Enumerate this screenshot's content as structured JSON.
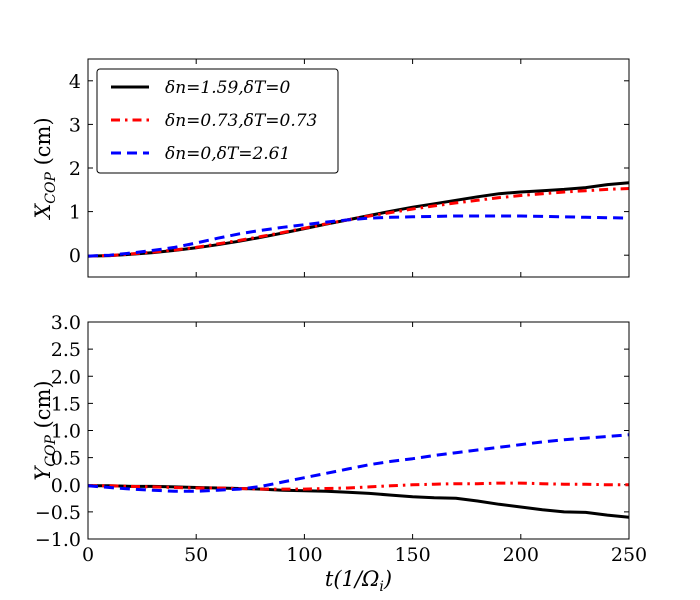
{
  "chart_data": [
    {
      "type": "line",
      "xlabel": "",
      "ylabel": "X_COP (cm)",
      "ylabel_main": "X",
      "ylabel_sub": "COP",
      "ylabel_unit": " (cm)",
      "xlim": [
        0,
        250
      ],
      "ylim": [
        -0.5,
        4.5
      ],
      "yticks": [
        0,
        1,
        2,
        3,
        4
      ],
      "xticks": [
        0,
        50,
        100,
        150,
        200,
        250
      ],
      "show_x_tick_labels": false,
      "legend_position": "top-left",
      "series": [
        {
          "name": "δn=1.59,δT=0",
          "color": "#000000",
          "style": "solid",
          "x": [
            0,
            10,
            20,
            30,
            40,
            50,
            60,
            70,
            80,
            90,
            100,
            110,
            120,
            130,
            140,
            150,
            160,
            170,
            180,
            190,
            200,
            210,
            220,
            230,
            240,
            250
          ],
          "y": [
            -0.02,
            -0.01,
            0.02,
            0.06,
            0.11,
            0.17,
            0.24,
            0.32,
            0.41,
            0.51,
            0.61,
            0.71,
            0.81,
            0.91,
            1.01,
            1.1,
            1.18,
            1.26,
            1.34,
            1.41,
            1.45,
            1.48,
            1.51,
            1.55,
            1.62,
            1.66
          ]
        },
        {
          "name": "δn=0.73,δT=0.73",
          "color": "#ff0000",
          "style": "dashdot",
          "x": [
            0,
            10,
            20,
            30,
            40,
            50,
            60,
            70,
            80,
            90,
            100,
            110,
            120,
            130,
            140,
            150,
            160,
            170,
            180,
            190,
            200,
            210,
            220,
            230,
            240,
            250
          ],
          "y": [
            -0.02,
            -0.01,
            0.03,
            0.07,
            0.12,
            0.18,
            0.26,
            0.34,
            0.43,
            0.52,
            0.62,
            0.72,
            0.81,
            0.9,
            0.98,
            1.06,
            1.13,
            1.2,
            1.26,
            1.32,
            1.37,
            1.41,
            1.45,
            1.48,
            1.51,
            1.53
          ]
        },
        {
          "name": "δn=0,δT=2.61",
          "color": "#0000ff",
          "style": "dashed",
          "x": [
            0,
            10,
            20,
            30,
            40,
            50,
            60,
            70,
            80,
            90,
            100,
            110,
            120,
            130,
            140,
            150,
            160,
            170,
            180,
            190,
            200,
            210,
            220,
            230,
            240,
            250
          ],
          "y": [
            -0.02,
            0.0,
            0.05,
            0.11,
            0.18,
            0.28,
            0.39,
            0.49,
            0.57,
            0.64,
            0.7,
            0.76,
            0.81,
            0.85,
            0.87,
            0.88,
            0.89,
            0.9,
            0.9,
            0.9,
            0.9,
            0.89,
            0.88,
            0.87,
            0.86,
            0.85
          ]
        }
      ]
    },
    {
      "type": "line",
      "xlabel": "t(1/Ω_i)",
      "xlabel_main": "t(1/Ω",
      "xlabel_sub": "i",
      "xlabel_tail": ")",
      "ylabel": "Y_COP (cm)",
      "ylabel_main": "Y",
      "ylabel_sub": "COP",
      "ylabel_unit": " (cm)",
      "xlim": [
        0,
        250
      ],
      "ylim": [
        -1.0,
        3.0
      ],
      "yticks": [
        -1.0,
        -0.5,
        0.0,
        0.5,
        1.0,
        1.5,
        2.0,
        2.5,
        3.0
      ],
      "ytick_labels": [
        "−1.0",
        "−0.5",
        "0.0",
        "0.5",
        "1.0",
        "1.5",
        "2.0",
        "2.5",
        "3.0"
      ],
      "xticks": [
        0,
        50,
        100,
        150,
        200,
        250
      ],
      "xtick_labels": [
        "0",
        "50",
        "100",
        "150",
        "200",
        "250"
      ],
      "show_x_tick_labels": true,
      "series": [
        {
          "name": "δn=1.59,δT=0",
          "color": "#000000",
          "style": "solid",
          "x": [
            0,
            10,
            20,
            30,
            40,
            50,
            60,
            70,
            80,
            90,
            100,
            110,
            120,
            130,
            140,
            150,
            160,
            170,
            180,
            190,
            200,
            210,
            220,
            230,
            240,
            250
          ],
          "y": [
            -0.02,
            -0.02,
            -0.03,
            -0.03,
            -0.04,
            -0.05,
            -0.06,
            -0.07,
            -0.08,
            -0.1,
            -0.11,
            -0.12,
            -0.14,
            -0.16,
            -0.19,
            -0.22,
            -0.24,
            -0.25,
            -0.3,
            -0.36,
            -0.41,
            -0.46,
            -0.5,
            -0.51,
            -0.56,
            -0.6
          ]
        },
        {
          "name": "δn=0.73,δT=0.73",
          "color": "#ff0000",
          "style": "dashdot",
          "x": [
            0,
            10,
            20,
            30,
            40,
            50,
            60,
            70,
            80,
            90,
            100,
            110,
            120,
            130,
            140,
            150,
            160,
            170,
            180,
            190,
            200,
            210,
            220,
            230,
            240,
            250
          ],
          "y": [
            -0.02,
            -0.02,
            -0.03,
            -0.04,
            -0.05,
            -0.06,
            -0.06,
            -0.07,
            -0.08,
            -0.08,
            -0.08,
            -0.07,
            -0.06,
            -0.04,
            -0.02,
            0.0,
            0.01,
            0.02,
            0.02,
            0.03,
            0.03,
            0.02,
            0.01,
            0.01,
            0.0,
            0.0
          ]
        },
        {
          "name": "δn=0,δT=2.61",
          "color": "#0000ff",
          "style": "dashed",
          "x": [
            0,
            10,
            20,
            30,
            40,
            50,
            60,
            70,
            80,
            90,
            100,
            110,
            120,
            130,
            140,
            150,
            160,
            170,
            180,
            190,
            200,
            210,
            220,
            230,
            240,
            250
          ],
          "y": [
            -0.02,
            -0.05,
            -0.08,
            -0.1,
            -0.12,
            -0.12,
            -0.1,
            -0.08,
            -0.03,
            0.05,
            0.13,
            0.21,
            0.29,
            0.37,
            0.43,
            0.48,
            0.54,
            0.59,
            0.64,
            0.69,
            0.74,
            0.79,
            0.83,
            0.86,
            0.89,
            0.92
          ]
        }
      ]
    }
  ]
}
